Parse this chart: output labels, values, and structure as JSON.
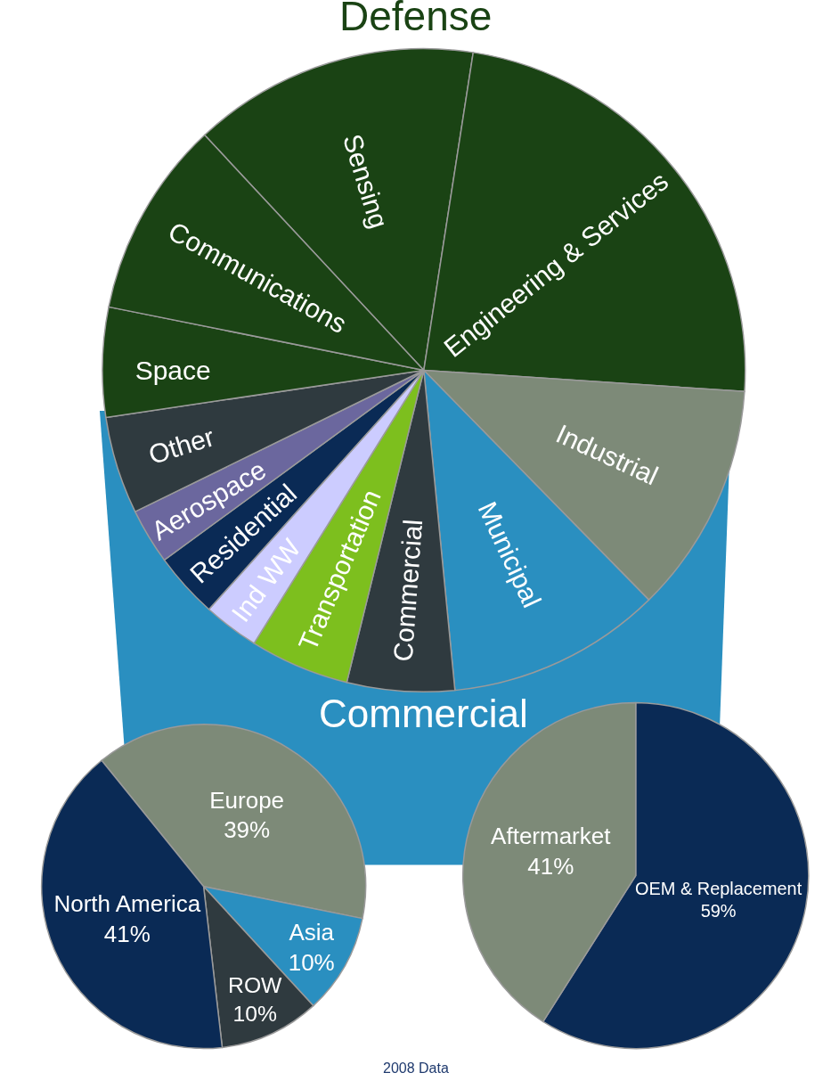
{
  "chart_data": [
    {
      "type": "pie",
      "categories": [
        "Sensing",
        "Engineering & Services",
        "Industrial",
        "Municipal",
        "Commercial",
        "Transportation",
        "Ind WW",
        "Residential",
        "Aerospace",
        "Other",
        "Space",
        "Communications"
      ],
      "values": [
        14.4,
        23.6,
        11.6,
        10.8,
        5.4,
        5.0,
        2.8,
        3.3,
        2.8,
        4.9,
        5.5,
        9.9
      ],
      "colors": [
        "#1a4314",
        "#1a4314",
        "#7d8a78",
        "#2a8fc0",
        "#2f3a3f",
        "#7dbf1e",
        "#ccccff",
        "#0a2a55",
        "#6b679e",
        "#2f3a3f",
        "#1a4314",
        "#1a4314"
      ],
      "annotations": [
        "Defense",
        "Commercial",
        "2008 Data"
      ]
    },
    {
      "type": "pie",
      "categories": [
        "Europe",
        "Asia",
        "ROW",
        "North America"
      ],
      "values": [
        39,
        10,
        10,
        41
      ],
      "value_labels": [
        "39%",
        "10%",
        "10%",
        "41%"
      ],
      "colors": [
        "#7d8a78",
        "#2a8fc0",
        "#2f3a3f",
        "#0a2a55"
      ]
    },
    {
      "type": "pie",
      "categories": [
        "OEM & Replacement",
        "Aftermarket"
      ],
      "values": [
        59,
        41
      ],
      "value_labels": [
        "59%",
        "41%"
      ],
      "colors": [
        "#0a2a55",
        "#7d8a78"
      ]
    }
  ]
}
